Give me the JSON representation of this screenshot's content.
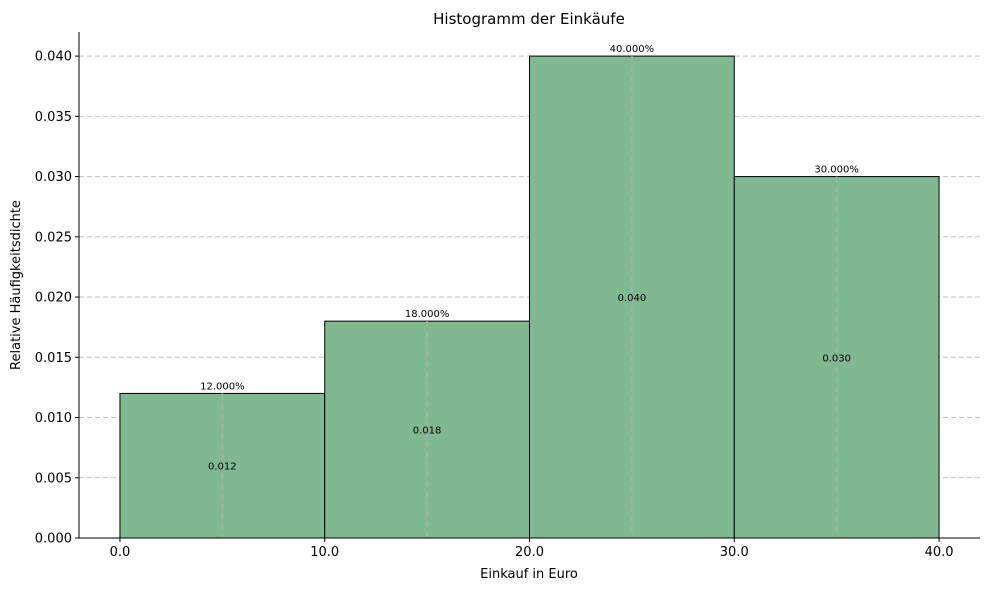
{
  "chart_data": {
    "type": "bar",
    "title": "Histogramm der Einkäufe",
    "xlabel": "Einkauf in Euro",
    "ylabel": "Relative Häufigkeitsdichte",
    "bins": [
      {
        "x0": 0,
        "x1": 10,
        "density": 0.012,
        "percent_label": "12.000%",
        "density_label": "0.012"
      },
      {
        "x0": 10,
        "x1": 20,
        "density": 0.018,
        "percent_label": "18.000%",
        "density_label": "0.018"
      },
      {
        "x0": 20,
        "x1": 30,
        "density": 0.04,
        "percent_label": "40.000%",
        "density_label": "0.040"
      },
      {
        "x0": 30,
        "x1": 40,
        "density": 0.03,
        "percent_label": "30.000%",
        "density_label": "0.030"
      }
    ],
    "xlim": [
      -2,
      42
    ],
    "ylim": [
      0,
      0.042
    ],
    "x_ticks": [
      0,
      10,
      20,
      30,
      40
    ],
    "x_tick_labels": [
      "0.0",
      "10.0",
      "20.0",
      "30.0",
      "40.0"
    ],
    "y_ticks": [
      0,
      0.005,
      0.01,
      0.015,
      0.02,
      0.025,
      0.03,
      0.035,
      0.04
    ],
    "y_tick_labels": [
      "0.000",
      "0.005",
      "0.010",
      "0.015",
      "0.020",
      "0.025",
      "0.030",
      "0.035",
      "0.040"
    ],
    "grid": "y-dashed",
    "bar_color": "#80b991",
    "edge_color": "#000000",
    "midline_color": "#9db8a3"
  }
}
